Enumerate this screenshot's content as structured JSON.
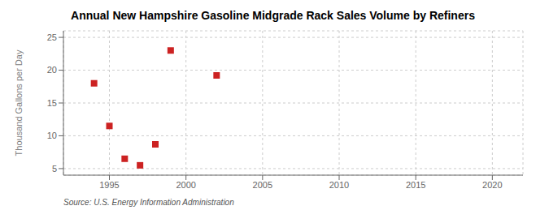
{
  "chart_data": {
    "type": "scatter",
    "title": "Annual New Hampshire Gasoline Midgrade Rack Sales Volume by Refiners",
    "ylabel": "Thousand Gallons per Day",
    "annotations": [
      "Source: U.S. Energy Information Administration"
    ],
    "x": [
      1994,
      1995,
      1996,
      1997,
      1998,
      1999,
      2002
    ],
    "values": [
      18.0,
      11.5,
      6.5,
      5.5,
      8.7,
      23.0,
      19.2
    ],
    "color": "#cc2222",
    "marker": "square",
    "xlim": [
      1992,
      2022
    ],
    "xticks": [
      1995,
      2000,
      2005,
      2010,
      2015,
      2020
    ],
    "ylim": [
      4,
      26
    ],
    "yticks": [
      5,
      10,
      15,
      20,
      25
    ],
    "grid": true
  }
}
